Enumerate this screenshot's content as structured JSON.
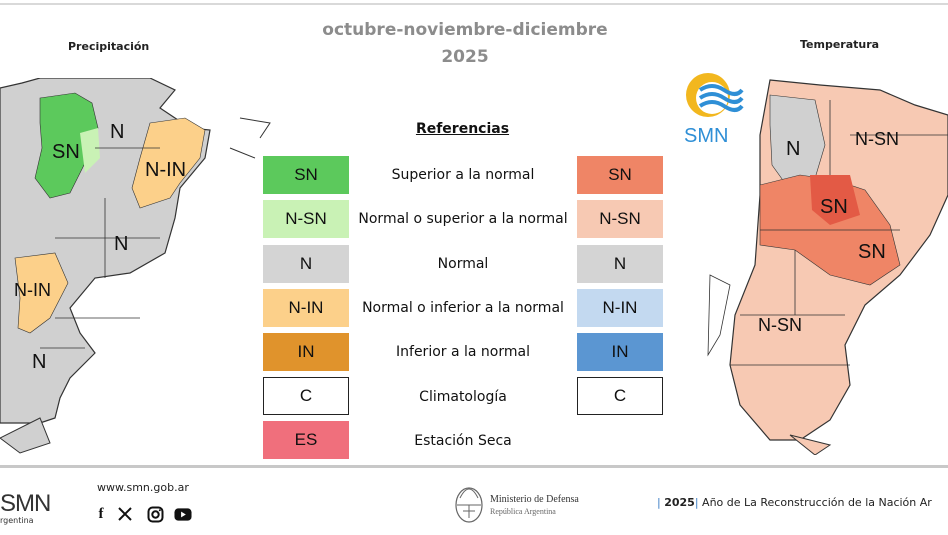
{
  "header": {
    "title_line1": "octubre-noviembre-diciembre",
    "title_line2": "2025"
  },
  "left_map": {
    "label": "Precipitación",
    "region_labels": [
      "SN",
      "N",
      "N-IN",
      "N",
      "N-IN",
      "N"
    ]
  },
  "right_map": {
    "label": "Temperatura",
    "logo_text": "SMN",
    "region_labels": [
      "N",
      "N-SN",
      "SN",
      "SN",
      "N-SN"
    ]
  },
  "legend": {
    "title": "Referencias",
    "rows": [
      {
        "precip_code": "SN",
        "precip_color": "#5cc95c",
        "desc": "Superior a la normal",
        "temp_code": "SN",
        "temp_color": "#ef8566"
      },
      {
        "precip_code": "N-SN",
        "precip_color": "#c9f2b5",
        "desc": "Normal o superior a la normal",
        "temp_code": "N-SN",
        "temp_color": "#f7c9b3"
      },
      {
        "precip_code": "N",
        "precip_color": "#d4d4d4",
        "desc": "Normal",
        "temp_code": "N",
        "temp_color": "#d4d4d4"
      },
      {
        "precip_code": "N-IN",
        "precip_color": "#fcd08a",
        "desc": "Normal o inferior a la normal",
        "temp_code": "N-IN",
        "temp_color": "#c3d9f0"
      },
      {
        "precip_code": "IN",
        "precip_color": "#e0932c",
        "desc": "Inferior a la normal",
        "temp_code": "IN",
        "temp_color": "#5b96d2"
      },
      {
        "precip_code": "C",
        "precip_color": "#ffffff",
        "desc": "Climatología",
        "temp_code": "C",
        "temp_color": "#ffffff"
      },
      {
        "precip_code": "ES",
        "precip_color": "#f06f7c",
        "desc": "Estación Seca"
      }
    ]
  },
  "footer": {
    "logo_text": "SMN",
    "logo_sub": "rgentina",
    "website": "www.smn.gob.ar",
    "social": [
      "facebook-icon",
      "x-icon",
      "instagram-icon",
      "youtube-icon"
    ],
    "ministry": "Ministerio de Defensa",
    "ministry_sub": "República Argentina",
    "year": "2025",
    "year_text": " Año de La Reconstrucción de la Nación Ar"
  }
}
